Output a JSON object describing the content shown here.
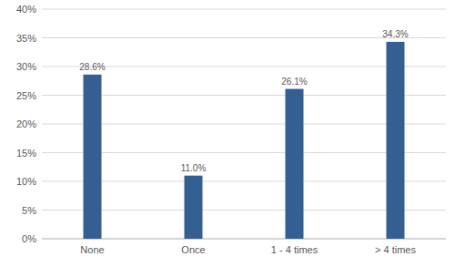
{
  "chart_data": {
    "type": "bar",
    "categories": [
      "None",
      "Once",
      "1 - 4 times",
      "> 4 times"
    ],
    "values": [
      28.6,
      11.0,
      26.1,
      34.3
    ],
    "value_labels": [
      "28.6%",
      "11.0%",
      "26.1%",
      "34.3%"
    ],
    "data_labels": true,
    "color": "#345f92",
    "ylim": [
      0,
      40
    ],
    "yticks": [
      {
        "value": 0,
        "label": "0%"
      },
      {
        "value": 5,
        "label": "5%"
      },
      {
        "value": 10,
        "label": "10%"
      },
      {
        "value": 15,
        "label": "15%"
      },
      {
        "value": 20,
        "label": "20%"
      },
      {
        "value": 25,
        "label": "25%"
      },
      {
        "value": 30,
        "label": "30%"
      },
      {
        "value": 35,
        "label": "35%"
      },
      {
        "value": 40,
        "label": "40%"
      }
    ],
    "grid": true
  }
}
